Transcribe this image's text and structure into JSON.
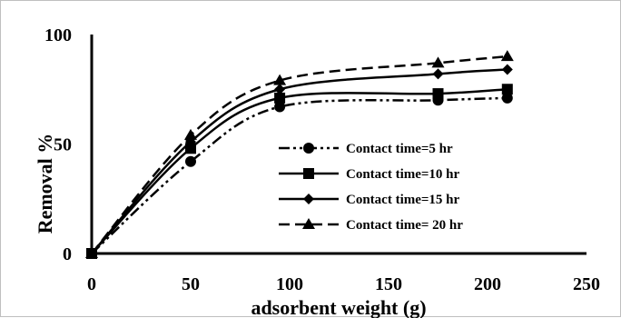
{
  "chart_data": {
    "type": "scatter",
    "xlabel": "adsorbent weight (g)",
    "ylabel": "Removal %",
    "xlim": [
      0,
      250
    ],
    "ylim": [
      0,
      100
    ],
    "x_ticks": [
      0,
      50,
      100,
      150,
      200,
      250
    ],
    "y_ticks": [
      0,
      50,
      100
    ],
    "grid": false,
    "legend_position": "center-right",
    "series": [
      {
        "name": "Contact time=5 hr",
        "marker": "circle",
        "line_style": "dash-dot-dot",
        "x": [
          0,
          50,
          95,
          175,
          210
        ],
        "y": [
          0,
          42,
          67,
          70,
          71
        ]
      },
      {
        "name": "Contact time=10 hr",
        "marker": "square",
        "line_style": "solid",
        "x": [
          0,
          50,
          95,
          175,
          210
        ],
        "y": [
          0,
          48,
          71,
          73,
          75
        ]
      },
      {
        "name": "Contact time=15 hr",
        "marker": "diamond",
        "line_style": "solid",
        "x": [
          0,
          50,
          95,
          175,
          210
        ],
        "y": [
          0,
          51,
          75,
          82,
          84
        ]
      },
      {
        "name": "Contact time= 20 hr",
        "marker": "triangle",
        "line_style": "long-dash",
        "x": [
          0,
          50,
          95,
          175,
          210
        ],
        "y": [
          0,
          54,
          79,
          87,
          90
        ]
      }
    ]
  }
}
